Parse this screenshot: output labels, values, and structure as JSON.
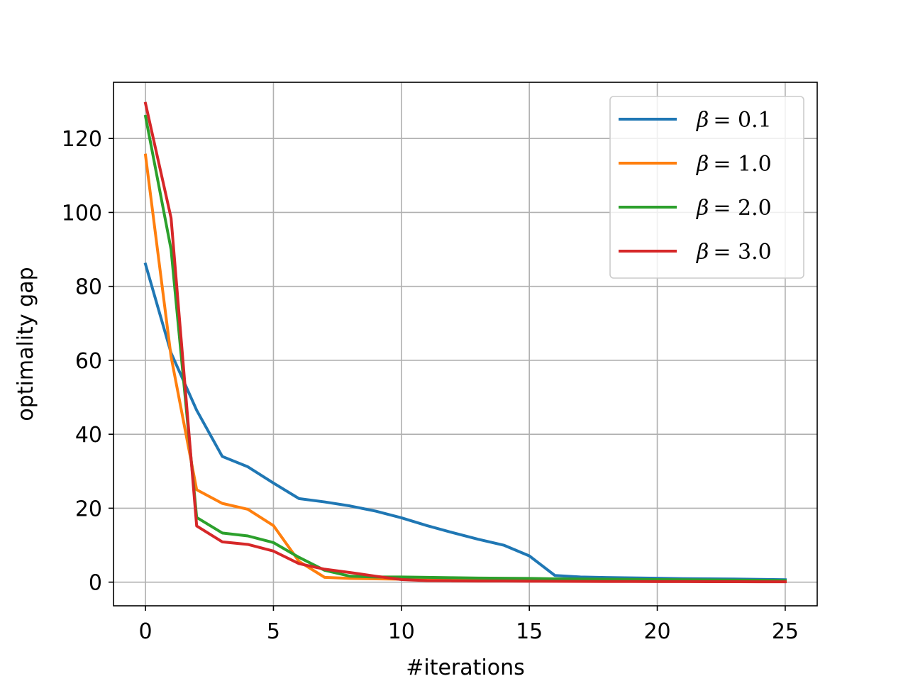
{
  "chart_data": {
    "type": "line",
    "xlabel": "#iterations",
    "ylabel": "optimality gap",
    "xlim": [
      -1.25,
      26.25
    ],
    "ylim": [
      -6.4,
      135.2
    ],
    "xticks": [
      0,
      5,
      10,
      15,
      20,
      25
    ],
    "yticks": [
      0,
      20,
      40,
      60,
      80,
      100,
      120
    ],
    "grid": true,
    "legend_position": "upper right",
    "series": [
      {
        "name": "β = 0.1",
        "legend_symbol": "β",
        "legend_value": "= 0.1",
        "color": "#1f77b4",
        "x": [
          0,
          1,
          2,
          3,
          4,
          5,
          6,
          7,
          8,
          9,
          10,
          11,
          12,
          13,
          14,
          15,
          16,
          17,
          18,
          19,
          20,
          21,
          22,
          23,
          24,
          25
        ],
        "y": [
          86,
          62,
          46.5,
          34,
          31.2,
          26.8,
          22.6,
          21.7,
          20.6,
          19.2,
          17.4,
          15.3,
          13.4,
          11.6,
          10,
          7.1,
          1.8,
          1.4,
          1.25,
          1.15,
          1.05,
          0.95,
          0.9,
          0.85,
          0.75,
          0.65
        ]
      },
      {
        "name": "β = 1.0",
        "legend_symbol": "β",
        "legend_value": "= 1.0",
        "color": "#ff7f0e",
        "x": [
          0,
          1,
          2,
          3,
          4,
          5,
          6,
          7,
          8,
          9,
          10,
          11,
          12,
          13,
          14,
          15,
          16,
          17,
          18,
          19,
          20,
          21,
          22,
          23,
          24,
          25
        ],
        "y": [
          115.5,
          61,
          25,
          21.3,
          19.7,
          15.3,
          5.6,
          1.3,
          1,
          0.9,
          0.8,
          0.7,
          0.6,
          0.55,
          0.5,
          0.45,
          0.4,
          0.38,
          0.35,
          0.32,
          0.3,
          0.28,
          0.25,
          0.22,
          0.2,
          0.18
        ]
      },
      {
        "name": "β = 2.0",
        "legend_symbol": "β",
        "legend_value": "= 2.0",
        "color": "#2ca02c",
        "x": [
          0,
          1,
          2,
          3,
          4,
          5,
          6,
          7,
          8,
          9,
          10,
          11,
          12,
          13,
          14,
          15,
          16,
          17,
          18,
          19,
          20,
          21,
          22,
          23,
          24,
          25
        ],
        "y": [
          126,
          90,
          17.5,
          13.3,
          12.5,
          10.7,
          6.7,
          3.2,
          1.6,
          1.4,
          1.4,
          1.3,
          1.2,
          1.1,
          1.05,
          1,
          0.9,
          0.85,
          0.8,
          0.75,
          0.7,
          0.65,
          0.6,
          0.55,
          0.5,
          0.45
        ]
      },
      {
        "name": "β = 3.0",
        "legend_symbol": "β",
        "legend_value": "= 3.0",
        "color": "#d62728",
        "x": [
          0,
          1,
          2,
          3,
          4,
          5,
          6,
          7,
          8,
          9,
          10,
          11,
          12,
          13,
          14,
          15,
          16,
          17,
          18,
          19,
          20,
          21,
          22,
          23,
          24,
          25
        ],
        "y": [
          129.5,
          98.5,
          15.2,
          10.9,
          10.2,
          8.4,
          5,
          3.5,
          2.6,
          1.6,
          0.7,
          0.4,
          0.35,
          0.3,
          0.28,
          0.25,
          0.22,
          0.2,
          0.18,
          0.16,
          0.15,
          0.14,
          0.13,
          0.12,
          0.11,
          0.1
        ]
      }
    ]
  }
}
